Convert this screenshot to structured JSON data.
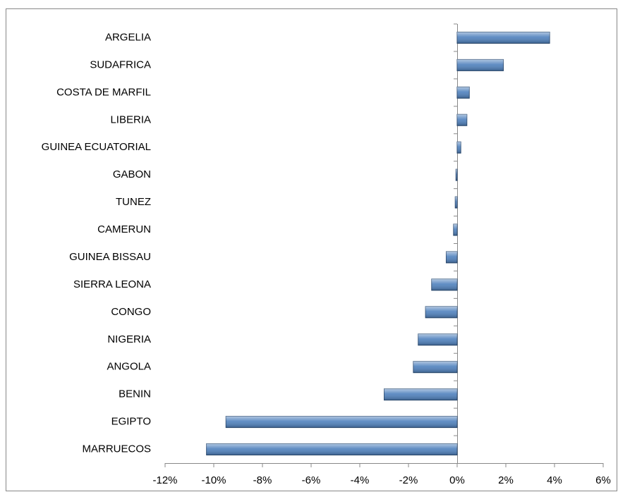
{
  "chart_data": {
    "type": "bar",
    "orientation": "horizontal",
    "categories": [
      "ARGELIA",
      "SUDAFRICA",
      "COSTA DE MARFIL",
      "LIBERIA",
      "GUINEA ECUATORIAL",
      "GABON",
      "TUNEZ",
      "CAMERUN",
      "GUINEA BISSAU",
      "SIERRA LEONA",
      "CONGO",
      "NIGERIA",
      "ANGOLA",
      "BENIN",
      "EGIPTO",
      "MARRUECOS"
    ],
    "values": [
      3.8,
      1.9,
      0.5,
      0.4,
      0.15,
      -0.05,
      -0.08,
      -0.15,
      -0.45,
      -1.05,
      -1.3,
      -1.6,
      -1.8,
      -3.0,
      -9.5,
      -10.3
    ],
    "color": "#4f81bd",
    "xlim": [
      -12,
      6
    ],
    "xticks": [
      {
        "value": -12,
        "label": "-12%"
      },
      {
        "value": -10,
        "label": "-10%"
      },
      {
        "value": -8,
        "label": "-8%"
      },
      {
        "value": -6,
        "label": "-6%"
      },
      {
        "value": -4,
        "label": "-4%"
      },
      {
        "value": -2,
        "label": "-2%"
      },
      {
        "value": 0,
        "label": "0%"
      },
      {
        "value": 2,
        "label": "2%"
      },
      {
        "value": 4,
        "label": "4%"
      },
      {
        "value": 6,
        "label": "6%"
      }
    ],
    "grid": false
  }
}
